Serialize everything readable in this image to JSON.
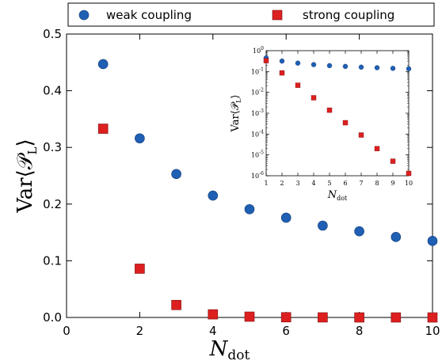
{
  "chart_data": {
    "main": {
      "type": "scatter",
      "xlabel": "N",
      "xlabel_sub": "dot",
      "ylabel": "Var⟨𝒫",
      "ylabel_sub": "L",
      "ylabel_close": "⟩",
      "xlim": [
        0,
        10
      ],
      "ylim": [
        0,
        0.5
      ],
      "xticks": [
        0,
        2,
        4,
        6,
        8,
        10
      ],
      "yticks": [
        0.0,
        0.1,
        0.2,
        0.3,
        0.4,
        0.5
      ],
      "xtick_labels": [
        "0",
        "2",
        "4",
        "6",
        "8",
        "10"
      ],
      "ytick_labels": [
        "0.0",
        "0.1",
        "0.2",
        "0.3",
        "0.4",
        "0.5"
      ],
      "series": [
        {
          "name": "weak coupling",
          "marker": "circle",
          "color": "#1f5fb4",
          "x": [
            1,
            2,
            3,
            4,
            5,
            6,
            7,
            8,
            9,
            10
          ],
          "y": [
            0.447,
            0.316,
            0.253,
            0.215,
            0.191,
            0.176,
            0.162,
            0.152,
            0.142,
            0.135
          ]
        },
        {
          "name": "strong coupling",
          "marker": "square",
          "color": "#dd1f1f",
          "x": [
            1,
            2,
            3,
            4,
            5,
            6,
            7,
            8,
            9,
            10
          ],
          "y": [
            0.333,
            0.086,
            0.022,
            0.0055,
            0.0014,
            0.00035,
            9e-05,
            2e-05,
            5e-06,
            1.3e-06
          ]
        }
      ],
      "legend": {
        "position": "top",
        "layout": "horizontal",
        "entries": [
          "weak coupling",
          "strong coupling"
        ]
      }
    },
    "inset": {
      "type": "scatter",
      "xscale": "linear",
      "yscale": "log",
      "xlabel": "N",
      "xlabel_sub": "dot",
      "ylabel": "Var⟨𝒫",
      "ylabel_sub": "L",
      "ylabel_close": "⟩",
      "xlim": [
        1,
        10
      ],
      "ylim": [
        1e-06,
        1
      ],
      "xticks": [
        1,
        2,
        3,
        4,
        5,
        6,
        7,
        8,
        9,
        10
      ],
      "xtick_labels": [
        "1",
        "2",
        "3",
        "4",
        "5",
        "6",
        "7",
        "8",
        "9",
        "10"
      ],
      "ytick_exponents": [
        0,
        -1,
        -2,
        -3,
        -4,
        -5,
        -6
      ],
      "ytick_base": "10",
      "position": "upper-right"
    }
  }
}
